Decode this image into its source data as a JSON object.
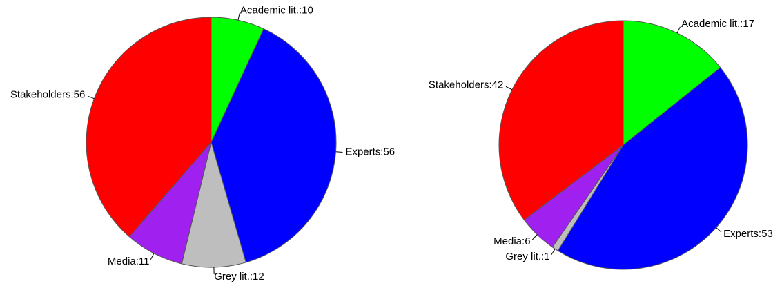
{
  "chart_data": [
    {
      "type": "pie",
      "slices": [
        {
          "label": "Academic lit.:10",
          "value": 10,
          "color": "#00ff00"
        },
        {
          "label": "Experts:56",
          "value": 56,
          "color": "#0000ff"
        },
        {
          "label": "Grey lit.:12",
          "value": 12,
          "color": "#bebebe"
        },
        {
          "label": "Media:11",
          "value": 11,
          "color": "#a020f0"
        },
        {
          "label": "Stakeholders:56",
          "value": 56,
          "color": "#ff0000"
        }
      ]
    },
    {
      "type": "pie",
      "slices": [
        {
          "label": "Academic lit.:17",
          "value": 17,
          "color": "#00ff00"
        },
        {
          "label": "Experts:53",
          "value": 53,
          "color": "#0000ff"
        },
        {
          "label": "Grey lit.:1",
          "value": 1,
          "color": "#bebebe"
        },
        {
          "label": "Media:6",
          "value": 6,
          "color": "#a020f0"
        },
        {
          "label": "Stakeholders:42",
          "value": 42,
          "color": "#ff0000"
        }
      ]
    }
  ]
}
